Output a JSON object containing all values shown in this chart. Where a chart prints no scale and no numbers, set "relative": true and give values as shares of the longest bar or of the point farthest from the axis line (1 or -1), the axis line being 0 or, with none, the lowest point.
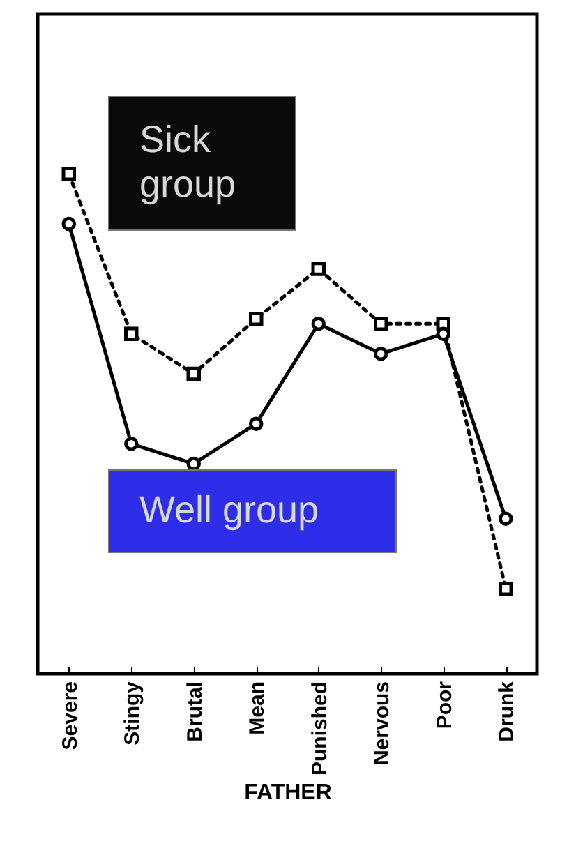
{
  "chart_data": {
    "type": "line",
    "relative": true,
    "xlabel": "FATHER",
    "categories": [
      "Severe",
      "Stingy",
      "Brutal",
      "Mean",
      "Punished",
      "Nervous",
      "Poor",
      "Drunk"
    ],
    "series": [
      {
        "name": "Sick group",
        "color": "#000000",
        "marker": "square",
        "line_style": "dotted",
        "values": [
          1,
          0.68,
          0.6,
          0.71,
          0.81,
          0.7,
          0.7,
          0.17
        ]
      },
      {
        "name": "Well group",
        "color": "#000000",
        "marker": "circle",
        "line_style": "solid",
        "values": [
          0.9,
          0.46,
          0.42,
          0.5,
          0.7,
          0.64,
          0.68,
          0.31
        ]
      }
    ]
  }
}
